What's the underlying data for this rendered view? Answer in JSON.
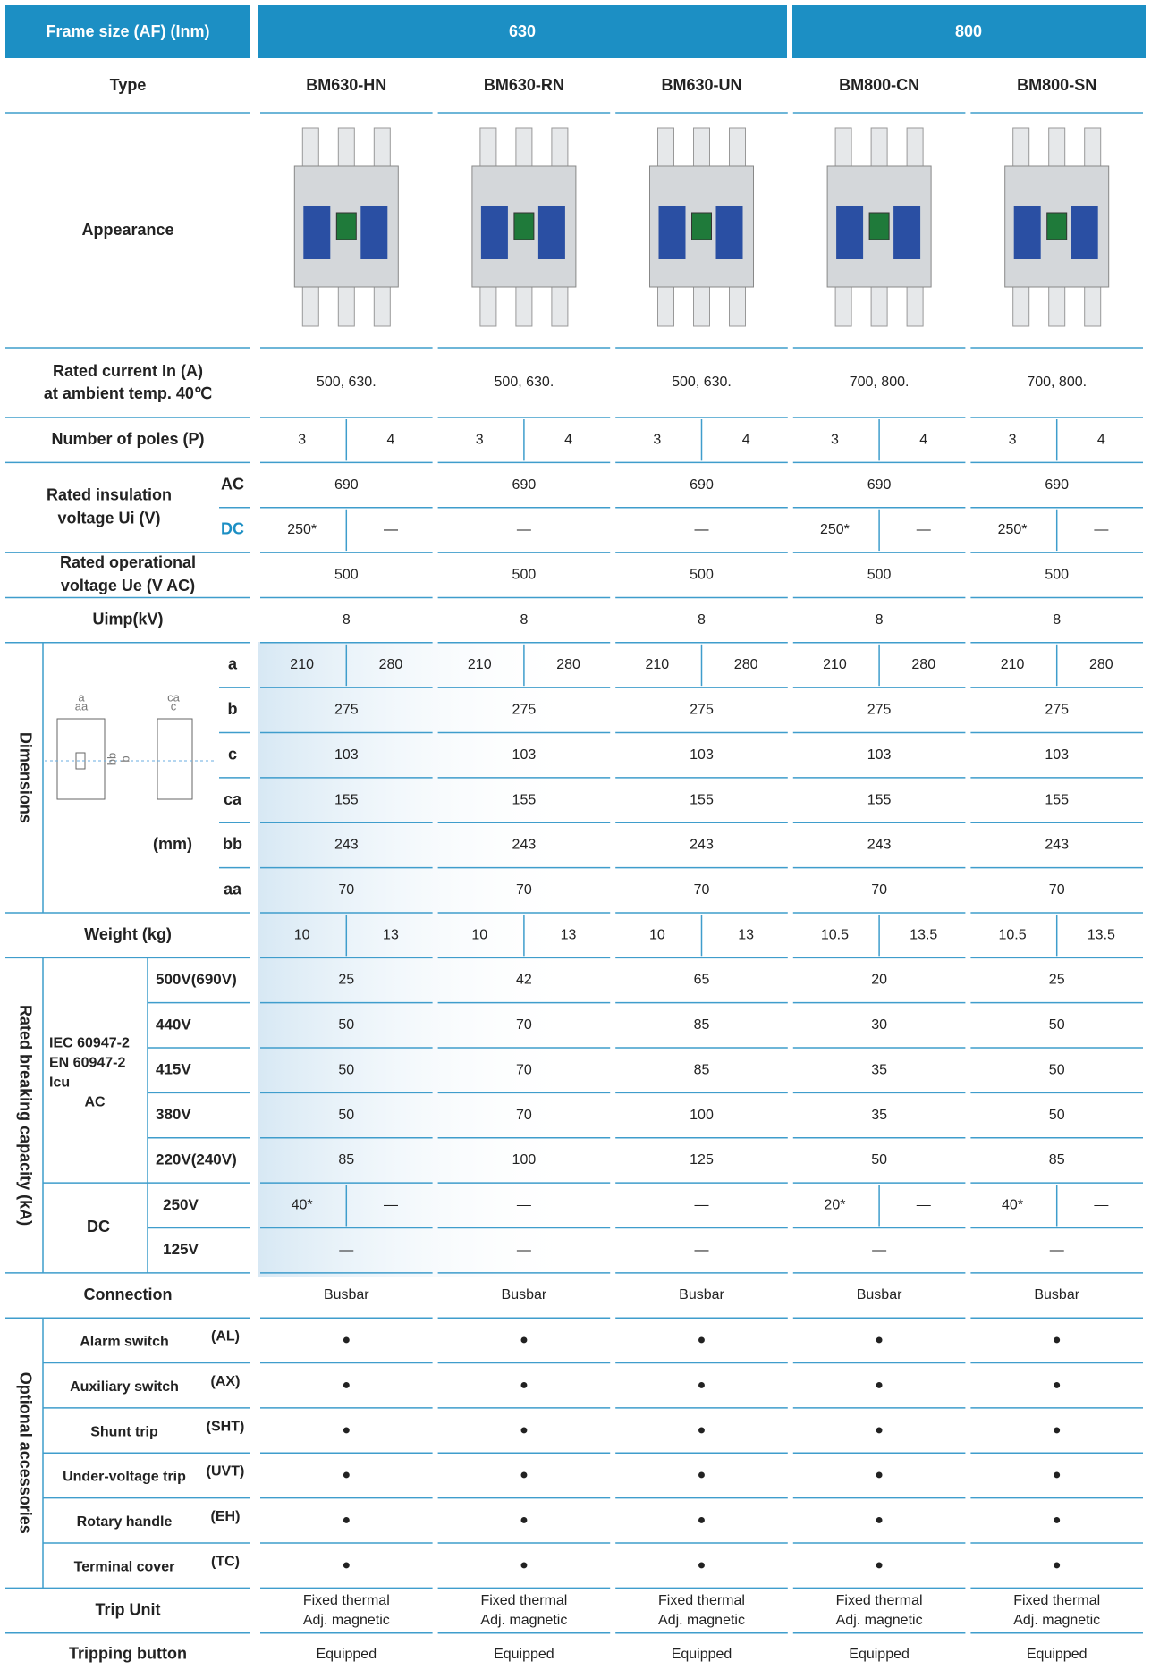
{
  "header": {
    "label": "Frame size (AF) (Inm)",
    "frames": [
      "630",
      "800"
    ]
  },
  "type": {
    "label": "Type",
    "models": [
      "BM630-HN",
      "BM630-RN",
      "BM630-UN",
      "BM800-CN",
      "BM800-SN"
    ]
  },
  "appearance": {
    "label": "Appearance"
  },
  "rated_current": {
    "label": [
      "Rated current In (A)",
      "at ambient temp. 40℃"
    ],
    "values": [
      "500, 630.",
      "500, 630.",
      "500, 630.",
      "700, 800.",
      "700, 800."
    ]
  },
  "poles": {
    "label": "Number of poles (P)",
    "values": [
      [
        "3",
        "4"
      ],
      [
        "3",
        "4"
      ],
      [
        "3",
        "4"
      ],
      [
        "3",
        "4"
      ],
      [
        "3",
        "4"
      ]
    ]
  },
  "insulation": {
    "label": [
      "Rated insulation",
      "voltage Ui (V)"
    ],
    "ac": {
      "label": "AC",
      "values": [
        "690",
        "690",
        "690",
        "690",
        "690"
      ]
    },
    "dc": {
      "label": "DC",
      "values": [
        [
          "250*",
          "—"
        ],
        "—",
        "—",
        [
          "250*",
          "—"
        ],
        [
          "250*",
          "—"
        ]
      ]
    }
  },
  "operational": {
    "label": [
      "Rated operational",
      "voltage Ue (V AC)"
    ],
    "values": [
      "500",
      "500",
      "500",
      "500",
      "500"
    ]
  },
  "uimp": {
    "label": "Uimp(kV)",
    "values": [
      "8",
      "8",
      "8",
      "8",
      "8"
    ]
  },
  "dimensions": {
    "label": "Dimensions",
    "unit": "(mm)",
    "diagram": {
      "a": "a",
      "aa": "aa",
      "bb": "bb",
      "b": "b",
      "ca": "ca",
      "c": "c"
    },
    "rows": [
      {
        "label": "a",
        "values": [
          [
            "210",
            "280"
          ],
          [
            "210",
            "280"
          ],
          [
            "210",
            "280"
          ],
          [
            "210",
            "280"
          ],
          [
            "210",
            "280"
          ]
        ]
      },
      {
        "label": "b",
        "values": [
          "275",
          "275",
          "275",
          "275",
          "275"
        ]
      },
      {
        "label": "c",
        "values": [
          "103",
          "103",
          "103",
          "103",
          "103"
        ]
      },
      {
        "label": "ca",
        "values": [
          "155",
          "155",
          "155",
          "155",
          "155"
        ]
      },
      {
        "label": "bb",
        "values": [
          "243",
          "243",
          "243",
          "243",
          "243"
        ]
      },
      {
        "label": "aa",
        "values": [
          "70",
          "70",
          "70",
          "70",
          "70"
        ]
      }
    ]
  },
  "weight": {
    "label": "Weight (kg)",
    "values": [
      [
        "10",
        "13"
      ],
      [
        "10",
        "13"
      ],
      [
        "10",
        "13"
      ],
      [
        "10.5",
        "13.5"
      ],
      [
        "10.5",
        "13.5"
      ]
    ]
  },
  "breaking": {
    "label": "Rated breaking capacity (kA)",
    "ac": {
      "label": [
        "IEC 60947-2",
        "EN 60947-2",
        "Icu",
        "AC"
      ],
      "rows": [
        {
          "label": "500V(690V)",
          "values": [
            "25",
            "42",
            "65",
            "20",
            "25"
          ]
        },
        {
          "label": "440V",
          "values": [
            "50",
            "70",
            "85",
            "30",
            "50"
          ]
        },
        {
          "label": "415V",
          "values": [
            "50",
            "70",
            "85",
            "35",
            "50"
          ]
        },
        {
          "label": "380V",
          "values": [
            "50",
            "70",
            "100",
            "35",
            "50"
          ]
        },
        {
          "label": "220V(240V)",
          "values": [
            "85",
            "100",
            "125",
            "50",
            "85"
          ]
        }
      ]
    },
    "dc": {
      "label": "DC",
      "rows": [
        {
          "label": "250V",
          "values": [
            [
              "40*",
              "—"
            ],
            "—",
            "—",
            [
              "20*",
              "—"
            ],
            [
              "40*",
              "—"
            ]
          ]
        },
        {
          "label": "125V",
          "values": [
            "—",
            "—",
            "—",
            "—",
            "—"
          ]
        }
      ]
    }
  },
  "connection": {
    "label": "Connection",
    "values": [
      "Busbar",
      "Busbar",
      "Busbar",
      "Busbar",
      "Busbar"
    ]
  },
  "accessories": {
    "label": "Optional accessories",
    "rows": [
      {
        "name": "Alarm switch",
        "code": "(AL)",
        "values": [
          "●",
          "●",
          "●",
          "●",
          "●"
        ]
      },
      {
        "name": "Auxiliary switch",
        "code": "(AX)",
        "values": [
          "●",
          "●",
          "●",
          "●",
          "●"
        ]
      },
      {
        "name": "Shunt trip",
        "code": "(SHT)",
        "values": [
          "●",
          "●",
          "●",
          "●",
          "●"
        ]
      },
      {
        "name": "Under-voltage trip",
        "code": "(UVT)",
        "values": [
          "●",
          "●",
          "●",
          "●",
          "●"
        ]
      },
      {
        "name": "Rotary handle",
        "code": "(EH)",
        "values": [
          "●",
          "●",
          "●",
          "●",
          "●"
        ]
      },
      {
        "name": "Terminal cover",
        "code": "(TC)",
        "values": [
          "●",
          "●",
          "●",
          "●",
          "●"
        ]
      }
    ]
  },
  "trip_unit": {
    "label": "Trip Unit",
    "values": [
      [
        "Fixed thermal",
        "Adj. magnetic"
      ],
      [
        "Fixed thermal",
        "Adj. magnetic"
      ],
      [
        "Fixed thermal",
        "Adj. magnetic"
      ],
      [
        "Fixed thermal",
        "Adj. magnetic"
      ],
      [
        "Fixed thermal",
        "Adj. magnetic"
      ]
    ]
  },
  "tripping_button": {
    "label": "Tripping button",
    "values": [
      "Equipped",
      "Equipped",
      "Equipped",
      "Equipped",
      "Equipped"
    ]
  }
}
